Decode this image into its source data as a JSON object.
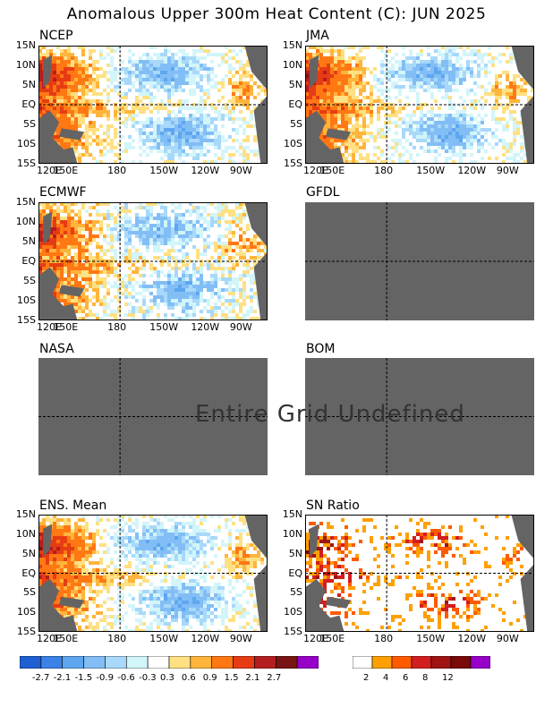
{
  "title": "Anomalous Upper 300m Heat Content (C): JUN 2025",
  "lat_labels": [
    "15N",
    "10N",
    "5N",
    "EQ",
    "5S",
    "10S",
    "15S"
  ],
  "lon_labels": [
    "120E",
    "150E",
    "180",
    "150W",
    "120W",
    "90W"
  ],
  "panels": {
    "ncep": "NCEP",
    "jma": "JMA",
    "ecmwf": "ECMWF",
    "gfdl": "GFDL",
    "nasa": "NASA",
    "bom": "BOM",
    "ens": "ENS. Mean",
    "sn": "SN Ratio"
  },
  "undefined_text": "Entire Grid Undefined",
  "colorbar_anom": {
    "colors": [
      "#1e5fd2",
      "#3a82e6",
      "#5ea6f0",
      "#82bef5",
      "#a8d8fa",
      "#d2f5fa",
      "#ffffff",
      "#ffe082",
      "#ffb43c",
      "#ff7814",
      "#e63c14",
      "#b41e1e",
      "#781414",
      "#9600c8"
    ],
    "labels": [
      "-2.7",
      "-2.1",
      "-1.5",
      "-0.9",
      "-0.6",
      "-0.3",
      "0.3",
      "0.6",
      "0.9",
      "1.5",
      "2.1",
      "2.7"
    ]
  },
  "colorbar_sn": {
    "colors": [
      "#ffffff",
      "#ffa000",
      "#ff5a00",
      "#d21e1e",
      "#a01414",
      "#780a0a",
      "#9600c8"
    ],
    "labels": [
      "2",
      "4",
      "6",
      "8",
      "12"
    ]
  },
  "chart_data": [
    {
      "type": "heatmap",
      "title": "NCEP",
      "xlabel": "",
      "ylabel": "",
      "xlim": [
        "120E",
        "70W"
      ],
      "ylim": [
        "15S",
        "15N"
      ]
    },
    {
      "type": "heatmap",
      "title": "JMA",
      "xlabel": "",
      "ylabel": "",
      "xlim": [
        "120E",
        "70W"
      ],
      "ylim": [
        "15S",
        "15N"
      ]
    },
    {
      "type": "heatmap",
      "title": "ECMWF",
      "xlabel": "",
      "ylabel": "",
      "xlim": [
        "120E",
        "70W"
      ],
      "ylim": [
        "15S",
        "15N"
      ]
    },
    {
      "type": "heatmap",
      "title": "GFDL",
      "status": "Entire Grid Undefined"
    },
    {
      "type": "heatmap",
      "title": "NASA",
      "status": "Entire Grid Undefined"
    },
    {
      "type": "heatmap",
      "title": "BOM",
      "status": "Entire Grid Undefined"
    },
    {
      "type": "heatmap",
      "title": "ENS. Mean",
      "xlabel": "",
      "ylabel": "",
      "xlim": [
        "120E",
        "70W"
      ],
      "ylim": [
        "15S",
        "15N"
      ]
    },
    {
      "type": "heatmap",
      "title": "SN Ratio",
      "xlabel": "",
      "ylabel": "",
      "xlim": [
        "120E",
        "70W"
      ],
      "ylim": [
        "15S",
        "15N"
      ]
    }
  ]
}
